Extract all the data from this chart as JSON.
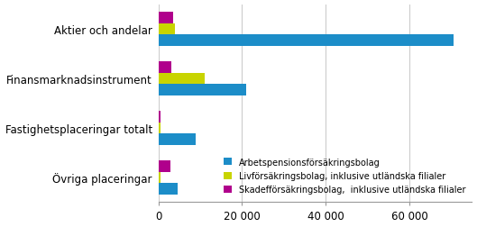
{
  "categories": [
    "Aktier och andelar",
    "Finansmarknadsinstrument",
    "Fastighetsplaceringar totalt",
    "Övriga placeringar"
  ],
  "series": [
    {
      "label": "Arbetspensionsförsäkringsbolag",
      "color": "#1c8dc8",
      "values": [
        70500,
        21000,
        9000,
        4500
      ]
    },
    {
      "label": "Livförsäkringsbolag, inklusive utländska filialer",
      "color": "#c8d400",
      "values": [
        4000,
        11000,
        500,
        500
      ]
    },
    {
      "label": "Skadefförsäkringsbolag,  inklusive utländska filialer",
      "color": "#b0008c",
      "values": [
        3500,
        3000,
        400,
        2800
      ]
    }
  ],
  "xlim": [
    0,
    75000
  ],
  "xticks": [
    0,
    20000,
    40000,
    60000
  ],
  "xticklabels": [
    "0",
    "20 000",
    "40 000",
    "60 000"
  ],
  "bar_height": 0.23,
  "background_color": "#ffffff",
  "legend_fontsize": 7.0,
  "ylabel_fontsize": 8.5,
  "tick_fontsize": 8.5
}
